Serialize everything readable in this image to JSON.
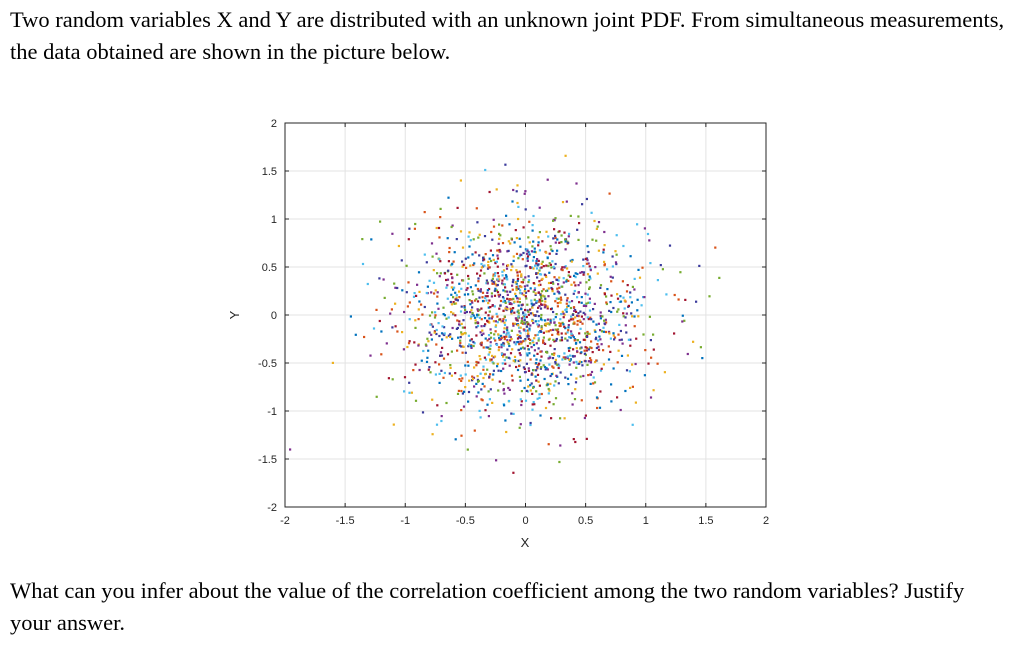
{
  "question": {
    "intro": "Two random variables X and Y are distributed with an unknown joint PDF. From simultaneous measurements, the data obtained are shown in the picture below.",
    "outro": "What can you infer about the value of the correlation coefficient among the two random variables? Justify your answer."
  },
  "chart_data": {
    "type": "scatter",
    "title": "",
    "xlabel": "X",
    "ylabel": "Y",
    "xlim": [
      -2,
      2
    ],
    "ylim": [
      -2,
      2
    ],
    "xticks": [
      "-2",
      "-1.5",
      "-1",
      "-0.5",
      "0",
      "0.5",
      "1",
      "1.5",
      "2"
    ],
    "yticks": [
      "2",
      "1.5",
      "1",
      "0.5",
      "0",
      "-0.5",
      "-1",
      "-1.5",
      "-2"
    ],
    "grid": true,
    "legend": "none",
    "point_colors": [
      "#0072bd",
      "#d95319",
      "#edb120",
      "#7e2f8e",
      "#77ac30",
      "#4dbeee",
      "#a2142f",
      "#3b3b9c"
    ],
    "points": {
      "distribution": "bivariate normal",
      "mean": [
        0,
        0
      ],
      "std": [
        0.5,
        0.5
      ],
      "correlation": 0,
      "count": 1800
    }
  }
}
